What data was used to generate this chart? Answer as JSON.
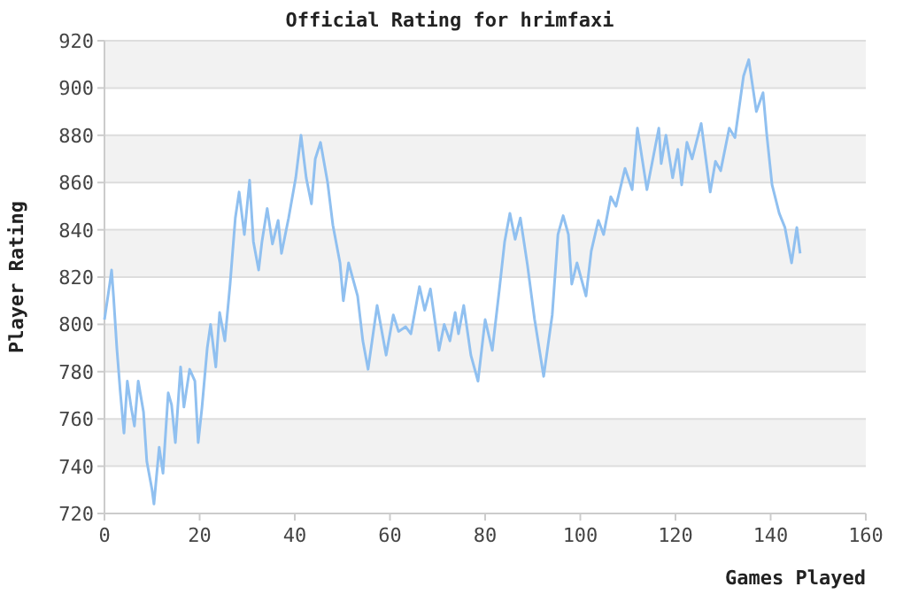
{
  "chart_data": {
    "type": "line",
    "title": "Official Rating for hrimfaxi",
    "xlabel": "Games Played",
    "ylabel": "Player Rating",
    "xlim": [
      0,
      160
    ],
    "xticks": [
      0,
      20,
      40,
      60,
      80,
      100,
      120,
      140,
      160
    ],
    "ylim": [
      720,
      920
    ],
    "yticks": [
      720,
      740,
      760,
      780,
      800,
      820,
      840,
      860,
      880,
      900,
      920
    ],
    "grid": "y",
    "line_style": "solid",
    "series": [
      {
        "color": "#90c0f0",
        "x": [
          0,
          1.1,
          1.5,
          1.9,
          2.6,
          3.3,
          4.1,
          4.8,
          5.6,
          6.3,
          7.1,
          8.2,
          8.9,
          10,
          10.4,
          11.5,
          12.3,
          13.4,
          14.1,
          14.9,
          16,
          16.7,
          17.9,
          19,
          19.7,
          20.5,
          21.6,
          22.3,
          23.4,
          24.2,
          25.3,
          26.4,
          27.5,
          28.3,
          29.4,
          30.5,
          31.3,
          32.4,
          33.1,
          34.2,
          35.3,
          36.5,
          37.2,
          38.7,
          40.2,
          41.3,
          42.4,
          43.5,
          44.3,
          45.4,
          46.9,
          48,
          49.5,
          50.2,
          51.3,
          53.2,
          54.3,
          55.4,
          57.3,
          59.2,
          60.7,
          61.8,
          63.3,
          64.4,
          66.2,
          67.3,
          68.5,
          70.3,
          71.4,
          72.6,
          73.7,
          74.4,
          75.5,
          77,
          78.5,
          80,
          81.5,
          83,
          84.1,
          85.2,
          86.3,
          87.4,
          88.9,
          90.4,
          92.3,
          94.1,
          95.3,
          96.4,
          97.5,
          98.2,
          99.3,
          101.2,
          102.3,
          103.8,
          104.9,
          106.4,
          107.5,
          109.4,
          110.9,
          112,
          114,
          116.5,
          117,
          118,
          119.4,
          120.5,
          121.3,
          122.4,
          123.5,
          125.4,
          127.3,
          128.4,
          129.5,
          131.3,
          132.5,
          134.3,
          135.4,
          137,
          138.4,
          139.2,
          140.3,
          141.8,
          143,
          144.4,
          145.5,
          146.2
        ],
        "values": [
          802,
          817,
          823,
          812,
          790,
          772,
          754,
          776,
          765,
          757,
          776,
          763,
          742,
          730,
          724,
          748,
          737,
          771,
          766,
          750,
          782,
          765,
          781,
          776,
          750,
          765,
          790,
          800,
          782,
          805,
          793,
          817,
          845,
          856,
          838,
          861,
          835,
          823,
          835,
          849,
          834,
          844,
          830,
          845,
          862,
          880,
          862,
          851,
          870,
          877,
          860,
          842,
          826,
          810,
          826,
          812,
          793,
          781,
          808,
          787,
          804,
          797,
          799,
          796,
          816,
          806,
          815,
          789,
          800,
          793,
          805,
          796,
          808,
          787,
          776,
          802,
          789,
          815,
          835,
          847,
          836,
          845,
          825,
          802,
          778,
          804,
          838,
          846,
          838,
          817,
          826,
          812,
          831,
          844,
          838,
          854,
          850,
          866,
          857,
          883,
          857,
          883,
          868,
          880,
          862,
          874,
          859,
          877,
          870,
          885,
          856,
          869,
          865,
          883,
          879,
          905,
          912,
          890,
          898,
          880,
          859,
          847,
          841,
          826,
          841,
          830
        ]
      }
    ]
  }
}
